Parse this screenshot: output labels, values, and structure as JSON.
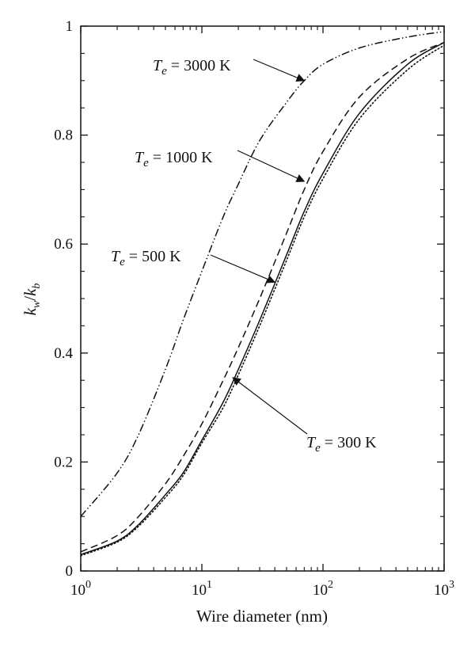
{
  "chart_data": {
    "type": "line",
    "title": "",
    "xlabel": "Wire diameter (nm)",
    "ylabel": {
      "base": "k",
      "sub_w": "w",
      "slash": "/",
      "sub_b": "b"
    },
    "xscale": "log",
    "xlim": [
      1,
      1000
    ],
    "ylim": [
      0,
      1
    ],
    "grid": false,
    "legend": "none",
    "x_ticks": [
      {
        "value": 1,
        "base": "10",
        "exp": "0"
      },
      {
        "value": 10,
        "base": "10",
        "exp": "1"
      },
      {
        "value": 100,
        "base": "10",
        "exp": "2"
      },
      {
        "value": 1000,
        "base": "10",
        "exp": "3"
      }
    ],
    "y_ticks": [
      {
        "value": 0,
        "label": "0"
      },
      {
        "value": 0.2,
        "label": "0.2"
      },
      {
        "value": 0.4,
        "label": "0.4"
      },
      {
        "value": 0.6,
        "label": "0.6"
      },
      {
        "value": 0.8,
        "label": "0.8"
      },
      {
        "value": 1,
        "label": "1"
      }
    ],
    "series": [
      {
        "key": "t3000",
        "dash": "dashdotdot",
        "x": [
          1,
          2,
          3,
          5,
          7,
          10,
          15,
          20,
          30,
          50,
          70,
          100,
          200,
          500,
          1000
        ],
        "y": [
          0.1,
          0.18,
          0.25,
          0.37,
          0.46,
          0.55,
          0.65,
          0.71,
          0.79,
          0.86,
          0.9,
          0.93,
          0.96,
          0.98,
          0.99
        ]
      },
      {
        "key": "t1000",
        "dash": "dashed",
        "x": [
          1,
          2,
          3,
          5,
          7,
          10,
          15,
          20,
          30,
          50,
          70,
          100,
          200,
          500,
          1000
        ],
        "y": [
          0.035,
          0.065,
          0.1,
          0.16,
          0.21,
          0.27,
          0.35,
          0.41,
          0.5,
          0.62,
          0.7,
          0.77,
          0.87,
          0.94,
          0.97
        ]
      },
      {
        "key": "t500",
        "dash": "solid",
        "x": [
          1,
          2,
          3,
          5,
          7,
          10,
          15,
          20,
          30,
          50,
          70,
          100,
          200,
          500,
          1000
        ],
        "y": [
          0.03,
          0.055,
          0.085,
          0.14,
          0.18,
          0.24,
          0.31,
          0.37,
          0.46,
          0.58,
          0.66,
          0.73,
          0.84,
          0.93,
          0.97
        ]
      },
      {
        "key": "t300",
        "dash": "dotted",
        "x": [
          1,
          2,
          3,
          5,
          7,
          10,
          15,
          20,
          30,
          50,
          70,
          100,
          200,
          500,
          1000
        ],
        "y": [
          0.028,
          0.053,
          0.082,
          0.135,
          0.175,
          0.235,
          0.3,
          0.36,
          0.45,
          0.57,
          0.65,
          0.72,
          0.83,
          0.92,
          0.965
        ]
      }
    ],
    "annotations": [
      {
        "var": "T",
        "sub": "e",
        "eq": " = ",
        "value": "3000",
        "unit": " K",
        "points_to": [
          70,
          0.9
        ]
      },
      {
        "var": "T",
        "sub": "e",
        "eq": " = ",
        "value": "1000",
        "unit": " K",
        "points_to": [
          70,
          0.715
        ]
      },
      {
        "var": "T",
        "sub": "e",
        "eq": " = ",
        "value": "500",
        "unit": " K",
        "points_to": [
          40,
          0.53
        ]
      },
      {
        "var": "T",
        "sub": "e",
        "eq": " = ",
        "value": "300",
        "unit": " K",
        "points_to": [
          18,
          0.355
        ]
      }
    ]
  }
}
